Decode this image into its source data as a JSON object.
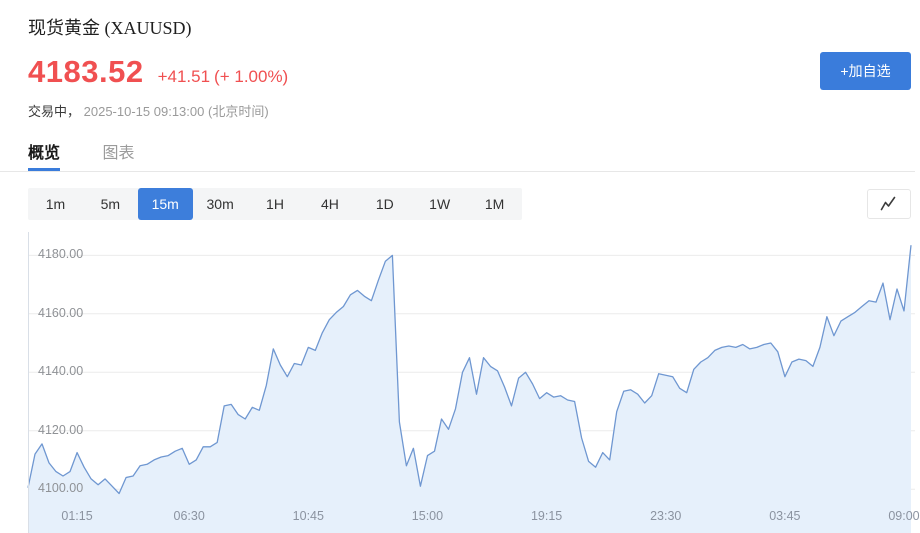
{
  "header": {
    "title": "现货黄金 (XAUUSD)",
    "price": "4183.52",
    "change": "+41.51",
    "change_pct": "(+ 1.00%)",
    "status_label": "交易中，",
    "datetime": "2025-10-15 09:13:00",
    "timezone": "(北京时间)",
    "watchlist_button": "+加自选"
  },
  "tabs": [
    {
      "label": "概览",
      "active": true
    },
    {
      "label": "图表",
      "active": false
    }
  ],
  "toolbar": {
    "timeframes": [
      "1m",
      "5m",
      "15m",
      "30m",
      "1H",
      "4H",
      "1D",
      "1W",
      "1M"
    ],
    "active_timeframe": "15m",
    "chart_type_icon": "line-chart-icon"
  },
  "colors": {
    "up_red": "#f05051",
    "accent_blue": "#3a7cdb",
    "line_blue": "#6f97d1",
    "area_fill": "#e6f0fb",
    "grid": "#ececec"
  },
  "chart_data": {
    "type": "area",
    "interval": "15m",
    "grid": true,
    "y_ticks": [
      "4180.00",
      "4160.00",
      "4140.00",
      "4120.00",
      "4100.00"
    ],
    "x_ticks": [
      {
        "label": "01:15",
        "index": 7
      },
      {
        "label": "06:30",
        "index": 23
      },
      {
        "label": "10:45",
        "index": 40
      },
      {
        "label": "15:00",
        "index": 57
      },
      {
        "label": "19:15",
        "index": 74
      },
      {
        "label": "23:30",
        "index": 91
      },
      {
        "label": "03:45",
        "index": 108
      },
      {
        "label": "09:00",
        "index": 125
      }
    ],
    "ylim": [
      4085,
      4188
    ],
    "values": [
      4100.5,
      4112,
      4115.5,
      4109,
      4106,
      4104.5,
      4106,
      4112.5,
      4107.5,
      4103.5,
      4101.5,
      4103.5,
      4101,
      4098.5,
      4104,
      4104.5,
      4108,
      4108.5,
      4110,
      4111,
      4111.5,
      4113,
      4114,
      4108.5,
      4110,
      4114.5,
      4114.5,
      4116,
      4128.5,
      4129,
      4125.5,
      4124,
      4128,
      4127,
      4135.5,
      4148,
      4142.5,
      4138.5,
      4143,
      4142.5,
      4148.5,
      4147.5,
      4153.5,
      4158,
      4160.5,
      4162.5,
      4166.5,
      4168,
      4166,
      4164.5,
      4171.5,
      4178,
      4180,
      4123,
      4108,
      4114,
      4101,
      4111.5,
      4113,
      4124,
      4120.5,
      4127.5,
      4140,
      4145,
      4132.5,
      4145,
      4142,
      4140.5,
      4135,
      4128.5,
      4138,
      4140,
      4136,
      4131,
      4133,
      4131.5,
      4132,
      4130.5,
      4130,
      4117.5,
      4109.5,
      4107.5,
      4112.5,
      4110,
      4126.5,
      4133.5,
      4134,
      4132.5,
      4129.5,
      4132,
      4139.5,
      4139,
      4138.5,
      4134.5,
      4133,
      4141,
      4143.5,
      4145,
      4147.5,
      4148.5,
      4149,
      4148.5,
      4149.5,
      4148,
      4148.5,
      4149.5,
      4150,
      4147,
      4138.5,
      4143.5,
      4144.5,
      4144,
      4142,
      4148.5,
      4159,
      4152.5,
      4157.5,
      4159,
      4160.5,
      4162.5,
      4164.5,
      4164,
      4170.5,
      4158,
      4168.5,
      4161,
      4183.5
    ]
  }
}
